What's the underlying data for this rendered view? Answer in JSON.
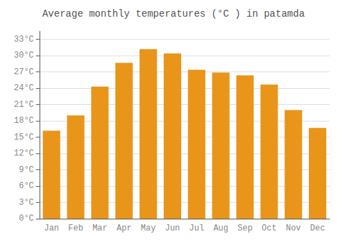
{
  "chart_data": {
    "type": "bar",
    "title": "Average monthly temperatures (°C ) in patamda",
    "categories": [
      "Jan",
      "Feb",
      "Mar",
      "Apr",
      "May",
      "Jun",
      "Jul",
      "Aug",
      "Sep",
      "Oct",
      "Nov",
      "Dec"
    ],
    "values": [
      16.2,
      19.0,
      24.3,
      28.7,
      31.2,
      30.4,
      27.4,
      26.9,
      26.4,
      24.7,
      20.0,
      16.7
    ],
    "color": "#E8951A",
    "ylim": [
      0,
      34.5
    ],
    "yticks": [
      {
        "value": 0,
        "label": "0°C"
      },
      {
        "value": 3,
        "label": "3°C"
      },
      {
        "value": 6,
        "label": "6°C"
      },
      {
        "value": 9,
        "label": "9°C"
      },
      {
        "value": 12,
        "label": "12°C"
      },
      {
        "value": 15,
        "label": "15°C"
      },
      {
        "value": 18,
        "label": "18°C"
      },
      {
        "value": 21,
        "label": "21°C"
      },
      {
        "value": 24,
        "label": "24°C"
      },
      {
        "value": 27,
        "label": "27°C"
      },
      {
        "value": 30,
        "label": "30°C"
      },
      {
        "value": 33,
        "label": "33°C"
      }
    ],
    "grid": true
  }
}
